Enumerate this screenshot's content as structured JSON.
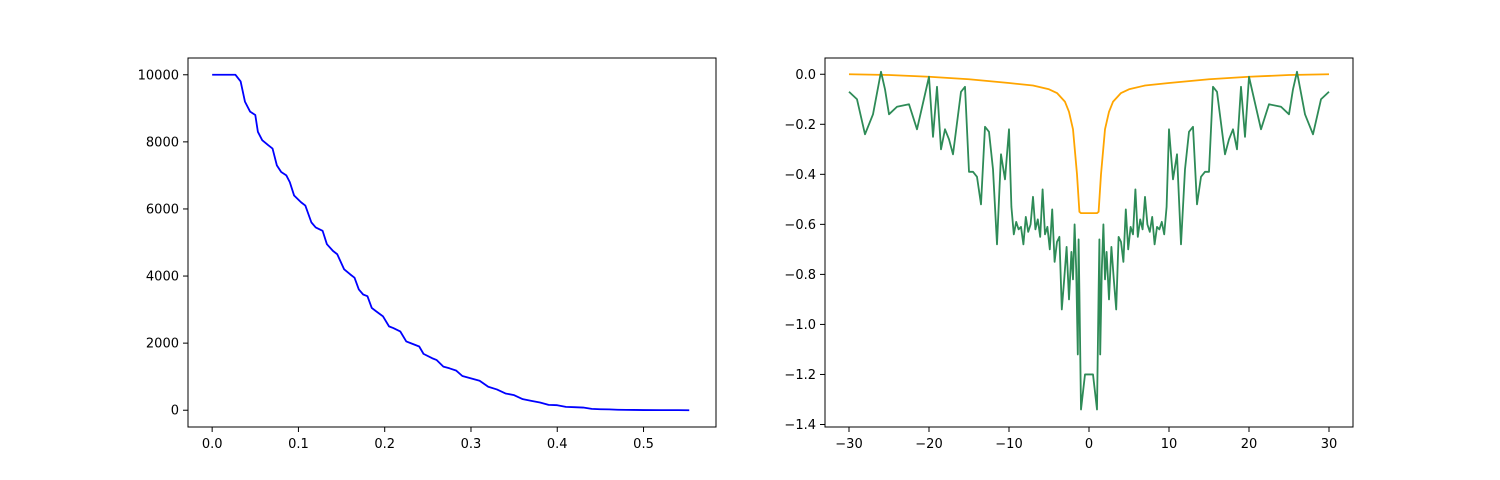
{
  "chart_data": [
    {
      "type": "line",
      "title": "",
      "xlabel": "",
      "ylabel": "",
      "xlim": [
        -0.028,
        0.584
      ],
      "ylim": [
        -500,
        10500
      ],
      "xticks": [
        0.0,
        0.1,
        0.2,
        0.3,
        0.4,
        0.5
      ],
      "xtick_labels": [
        "0.0",
        "0.1",
        "0.2",
        "0.3",
        "0.4",
        "0.5"
      ],
      "yticks": [
        0,
        2000,
        4000,
        6000,
        8000,
        10000
      ],
      "ytick_labels": [
        "0",
        "2000",
        "4000",
        "6000",
        "8000",
        "10000"
      ],
      "grid": false,
      "series": [
        {
          "color": "#0000ff",
          "x": [
            0.0,
            0.01,
            0.02,
            0.027,
            0.033,
            0.038,
            0.044,
            0.05,
            0.053,
            0.058,
            0.065,
            0.07,
            0.075,
            0.08,
            0.086,
            0.09,
            0.095,
            0.103,
            0.108,
            0.115,
            0.12,
            0.128,
            0.133,
            0.14,
            0.145,
            0.153,
            0.16,
            0.165,
            0.17,
            0.175,
            0.18,
            0.185,
            0.19,
            0.198,
            0.205,
            0.21,
            0.218,
            0.225,
            0.23,
            0.24,
            0.245,
            0.255,
            0.26,
            0.268,
            0.275,
            0.283,
            0.29,
            0.3,
            0.31,
            0.32,
            0.33,
            0.34,
            0.35,
            0.36,
            0.37,
            0.38,
            0.39,
            0.4,
            0.41,
            0.42,
            0.43,
            0.44,
            0.45,
            0.46,
            0.47,
            0.48,
            0.49,
            0.5,
            0.52,
            0.54,
            0.553
          ],
          "y": [
            10000,
            10000,
            10000,
            10000,
            9800,
            9200,
            8900,
            8800,
            8300,
            8050,
            7900,
            7800,
            7300,
            7100,
            7000,
            6800,
            6400,
            6200,
            6100,
            5600,
            5450,
            5350,
            4950,
            4750,
            4650,
            4200,
            4050,
            3950,
            3600,
            3450,
            3400,
            3050,
            2950,
            2800,
            2500,
            2450,
            2350,
            2050,
            2000,
            1900,
            1680,
            1550,
            1500,
            1300,
            1250,
            1180,
            1020,
            950,
            880,
            700,
            620,
            500,
            450,
            330,
            280,
            230,
            160,
            150,
            100,
            90,
            80,
            40,
            30,
            25,
            15,
            10,
            8,
            5,
            3,
            2,
            0
          ]
        }
      ]
    },
    {
      "type": "line",
      "title": "",
      "xlabel": "",
      "ylabel": "",
      "xlim": [
        -33.0,
        33.0
      ],
      "ylim": [
        -1.41,
        0.065
      ],
      "xticks": [
        -30,
        -20,
        -10,
        0,
        10,
        20,
        30
      ],
      "xtick_labels": [
        "−30",
        "−20",
        "−10",
        "0",
        "10",
        "20",
        "30"
      ],
      "yticks": [
        0.0,
        -0.2,
        -0.4,
        -0.6,
        -0.8,
        -1.0,
        -1.2,
        -1.4
      ],
      "ytick_labels": [
        "0.0",
        "−0.2",
        "−0.4",
        "−0.6",
        "−0.8",
        "−1.0",
        "−1.2",
        "−1.4"
      ],
      "grid": false,
      "series": [
        {
          "color": "#ffa500",
          "x": [
            -30,
            -25,
            -20,
            -15,
            -10,
            -7,
            -5,
            -4,
            -3,
            -2.5,
            -2,
            -1.5,
            -1.2,
            -1,
            1,
            1.2,
            1.5,
            2,
            2.5,
            3,
            4,
            5,
            7,
            10,
            15,
            20,
            25,
            30
          ],
          "y": [
            0,
            -0.003,
            -0.01,
            -0.02,
            -0.035,
            -0.045,
            -0.06,
            -0.075,
            -0.11,
            -0.15,
            -0.22,
            -0.4,
            -0.55,
            -0.555,
            -0.555,
            -0.55,
            -0.4,
            -0.22,
            -0.15,
            -0.11,
            -0.075,
            -0.06,
            -0.045,
            -0.035,
            -0.02,
            -0.01,
            -0.003,
            0
          ]
        },
        {
          "color": "#2e8b57",
          "x": [
            -30,
            -29,
            -28,
            -27,
            -26,
            -25.5,
            -25,
            -24,
            -22.5,
            -21.5,
            -20,
            -19.5,
            -19,
            -18.5,
            -18,
            -17.5,
            -17,
            -16,
            -15.5,
            -15,
            -14.5,
            -14,
            -13.5,
            -13,
            -12.5,
            -12,
            -11.5,
            -11,
            -10.5,
            -10,
            -9.7,
            -9.4,
            -9.1,
            -8.8,
            -8.5,
            -8.2,
            -7.9,
            -7.6,
            -7.3,
            -7,
            -6.7,
            -6.4,
            -6.1,
            -5.8,
            -5.5,
            -5.2,
            -4.9,
            -4.6,
            -4.3,
            -4,
            -3.7,
            -3.4,
            -3.1,
            -2.8,
            -2.5,
            -2.2,
            -2,
            -1.8,
            -1.6,
            -1.4,
            -1.3,
            -1.2,
            -1,
            -0.5,
            0,
            0.5,
            1,
            1.2,
            1.3,
            1.4,
            1.6,
            1.8,
            2,
            2.2,
            2.5,
            2.8,
            3.1,
            3.4,
            3.7,
            4,
            4.3,
            4.6,
            4.9,
            5.2,
            5.5,
            5.8,
            6.1,
            6.4,
            6.7,
            7,
            7.3,
            7.6,
            7.9,
            8.2,
            8.5,
            8.8,
            9.1,
            9.4,
            9.7,
            10,
            10.5,
            11,
            11.5,
            12,
            12.5,
            13,
            13.5,
            14,
            14.5,
            15,
            15.5,
            16,
            17,
            17.5,
            18,
            18.5,
            19,
            19.5,
            20,
            21.5,
            22.5,
            24,
            25,
            25.5,
            26,
            27,
            28,
            29,
            30
          ],
          "y": [
            -0.07,
            -0.1,
            -0.24,
            -0.16,
            0.01,
            -0.06,
            -0.16,
            -0.13,
            -0.12,
            -0.22,
            -0.01,
            -0.25,
            -0.05,
            -0.3,
            -0.22,
            -0.26,
            -0.32,
            -0.07,
            -0.05,
            -0.39,
            -0.39,
            -0.41,
            -0.52,
            -0.21,
            -0.23,
            -0.38,
            -0.68,
            -0.32,
            -0.42,
            -0.22,
            -0.53,
            -0.64,
            -0.59,
            -0.62,
            -0.61,
            -0.68,
            -0.57,
            -0.63,
            -0.6,
            -0.49,
            -0.62,
            -0.58,
            -0.65,
            -0.46,
            -0.64,
            -0.61,
            -0.7,
            -0.54,
            -0.75,
            -0.67,
            -0.65,
            -0.94,
            -0.82,
            -0.69,
            -0.9,
            -0.71,
            -0.82,
            -0.6,
            -0.78,
            -1.12,
            -0.66,
            -0.87,
            -1.34,
            -1.2,
            -1.2,
            -1.2,
            -1.34,
            -0.87,
            -0.66,
            -1.12,
            -0.78,
            -0.6,
            -0.82,
            -0.71,
            -0.9,
            -0.69,
            -0.82,
            -0.94,
            -0.65,
            -0.67,
            -0.75,
            -0.54,
            -0.7,
            -0.61,
            -0.64,
            -0.46,
            -0.65,
            -0.58,
            -0.62,
            -0.49,
            -0.6,
            -0.63,
            -0.57,
            -0.68,
            -0.61,
            -0.62,
            -0.59,
            -0.64,
            -0.53,
            -0.22,
            -0.42,
            -0.32,
            -0.68,
            -0.38,
            -0.23,
            -0.21,
            -0.52,
            -0.41,
            -0.39,
            -0.39,
            -0.05,
            -0.07,
            -0.32,
            -0.26,
            -0.22,
            -0.3,
            -0.05,
            -0.25,
            -0.01,
            -0.22,
            -0.12,
            -0.13,
            -0.16,
            -0.06,
            0.01,
            -0.16,
            -0.24,
            -0.1,
            -0.07
          ]
        }
      ]
    }
  ]
}
